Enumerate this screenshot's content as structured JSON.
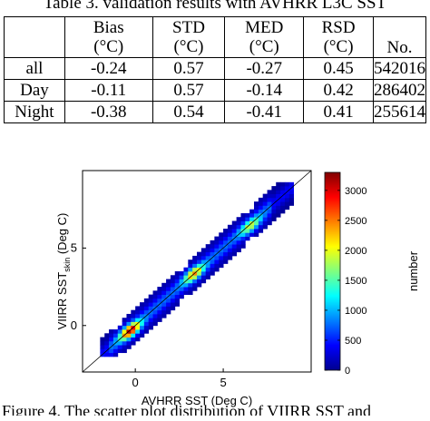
{
  "table": {
    "caption": "Table 3. validation results with AVHRR L3C SST",
    "headers": [
      {
        "line1": "",
        "line2": ""
      },
      {
        "line1": "Bias",
        "line2": "(°C)"
      },
      {
        "line1": "STD",
        "line2": "(°C)"
      },
      {
        "line1": "MED",
        "line2": "(°C)"
      },
      {
        "line1": "RSD",
        "line2": "(°C)"
      },
      {
        "line1": "",
        "line2": "No."
      }
    ],
    "rows": [
      {
        "label": "all",
        "bias": "-0.24",
        "std": "0.57",
        "med": "-0.27",
        "rsd": "0.45",
        "no": "542016"
      },
      {
        "label": "Day",
        "bias": "-0.11",
        "std": "0.57",
        "med": "-0.14",
        "rsd": "0.42",
        "no": "286402"
      },
      {
        "label": "Night",
        "bias": "-0.38",
        "std": "0.54",
        "med": "-0.41",
        "rsd": "0.41",
        "no": "255614"
      }
    ]
  },
  "chart_data": {
    "type": "heatmap",
    "xlabel": "AVHRR SST (Deg C)",
    "ylabel_main": "VIIRR SST",
    "ylabel_sub": "skin",
    "ylabel_tail": " (Deg C)",
    "xlim": [
      -3,
      10
    ],
    "ylim": [
      -3,
      10
    ],
    "xticks": [
      0,
      5
    ],
    "yticks": [
      0,
      5
    ],
    "xtick_labels": [
      "0",
      "5"
    ],
    "ytick_labels": [
      "0",
      "5"
    ],
    "diagonal_line": true,
    "colorbar": {
      "label": "number",
      "range": [
        0,
        3300
      ],
      "ticks": [
        0,
        500,
        1000,
        1500,
        2000,
        2500,
        3000
      ],
      "tick_labels": [
        "0",
        "500",
        "1000",
        "1500",
        "2000",
        "2500",
        "3000"
      ]
    },
    "hotspots": [
      {
        "x": -0.2,
        "y": -0.4,
        "count": 3200
      },
      {
        "x": 3.3,
        "y": 3.4,
        "count": 2400
      },
      {
        "x": 6.8,
        "y": 6.2,
        "count": 2300
      }
    ]
  },
  "figure_caption": "Figure 4. The scatter plot distribution of VIIRR SST and"
}
